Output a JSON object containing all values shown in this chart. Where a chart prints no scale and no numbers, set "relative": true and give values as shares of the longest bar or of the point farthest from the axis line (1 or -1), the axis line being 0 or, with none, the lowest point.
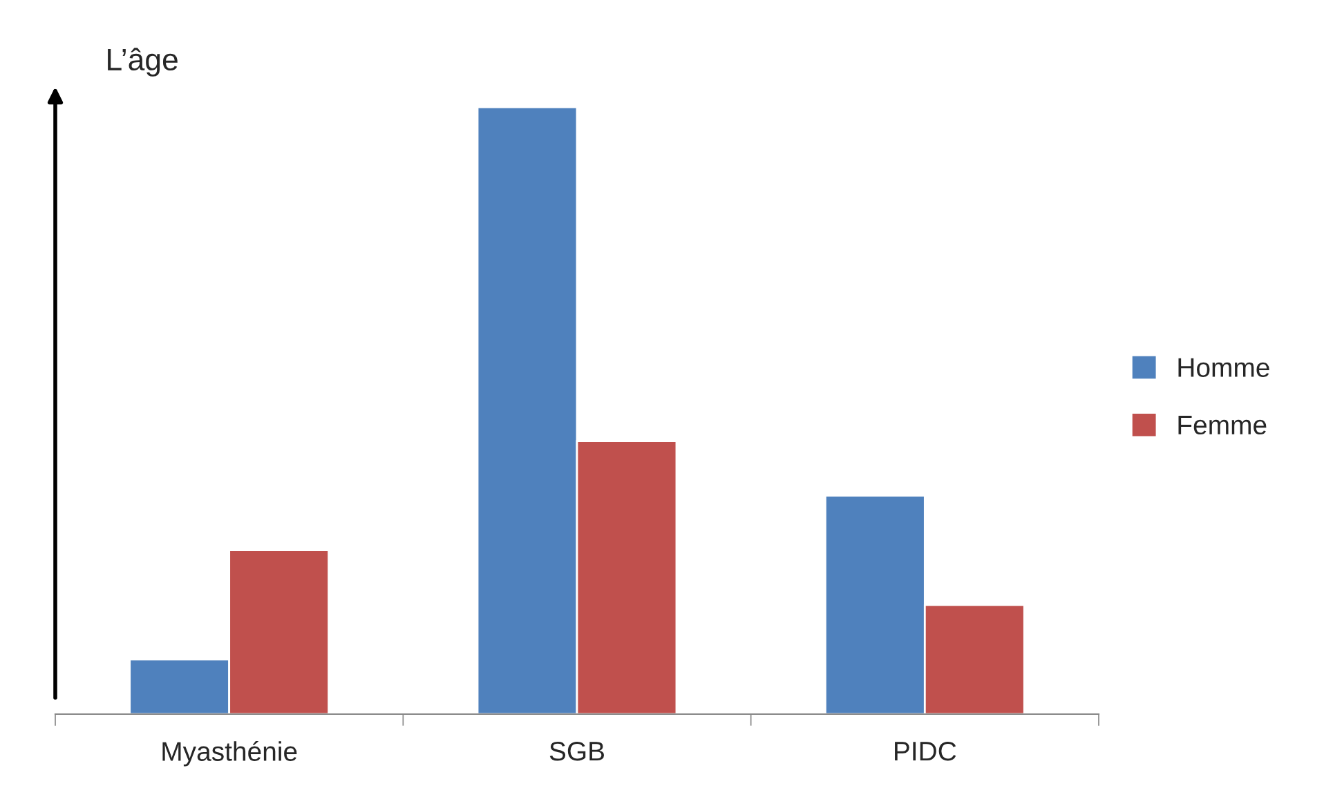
{
  "chart_data": {
    "type": "bar",
    "ylabel": "L’âge",
    "relative": true,
    "categories": [
      "Myasthénie",
      "SGB",
      "PIDC"
    ],
    "series": [
      {
        "name": "Homme",
        "color": "#4f81bd",
        "values": [
          0.09,
          1,
          0.36
        ]
      },
      {
        "name": "Femme",
        "color": "#c0504d",
        "values": [
          0.27,
          0.45,
          0.18
        ]
      }
    ],
    "legend": "right",
    "grid": false
  }
}
